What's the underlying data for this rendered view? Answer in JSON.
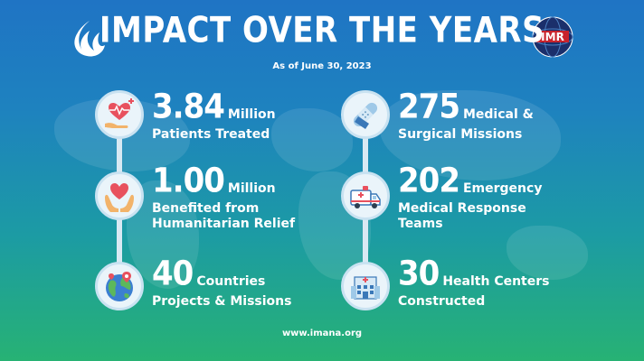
{
  "header": {
    "title": "IMPACT OVER THE YEARS",
    "subtitle": "As of June 30, 2023"
  },
  "logos": {
    "left": "flame-logo",
    "right_text": "IMR"
  },
  "stats": {
    "left": [
      {
        "icon": "heart-hands-icon",
        "value": "3.84",
        "unit": "Million",
        "lines": [
          "Patients Treated"
        ]
      },
      {
        "icon": "heart-care-icon",
        "value": "1.00",
        "unit": "Million",
        "lines": [
          "Benefited from",
          "Humanitarian Relief"
        ]
      },
      {
        "icon": "globe-icon",
        "value": "40",
        "unit": "Countries",
        "lines": [
          "Projects & Missions"
        ]
      }
    ],
    "right": [
      {
        "icon": "bandage-icon",
        "value": "275",
        "unit": "Medical &",
        "lines": [
          "Surgical Missions"
        ]
      },
      {
        "icon": "ambulance-icon",
        "value": "202",
        "unit": "Emergency",
        "lines": [
          "Medical Response",
          "Teams"
        ]
      },
      {
        "icon": "hospital-icon",
        "value": "30",
        "unit": "Health Centers",
        "lines": [
          "Constructed"
        ]
      }
    ]
  },
  "footer": {
    "url": "www.imana.org"
  },
  "colors": {
    "bg_top": "#1f74c4",
    "bg_bottom": "#27b274",
    "circle": "#eaf4fa",
    "heart": "#e8515e",
    "hand": "#f2b36a"
  }
}
